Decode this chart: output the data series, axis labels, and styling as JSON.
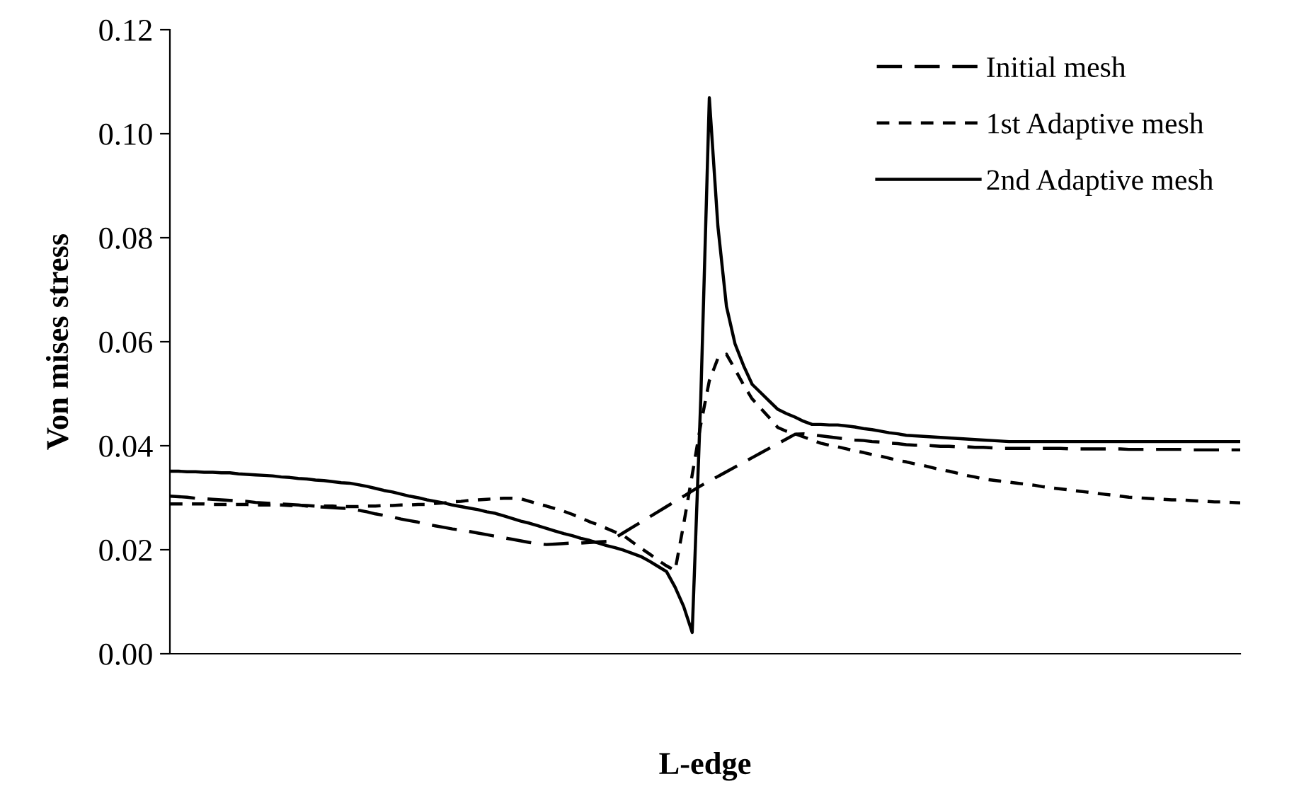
{
  "chart_data": {
    "type": "line",
    "xlabel": "L-edge",
    "ylabel": "Von mises stress",
    "ylim": [
      0,
      0.12
    ],
    "yticks": [
      {
        "value": 0,
        "label": "0.00"
      },
      {
        "value": 0.02,
        "label": "0.02"
      },
      {
        "value": 0.04,
        "label": "0.04"
      },
      {
        "value": 0.06,
        "label": "0.06"
      },
      {
        "value": 0.08,
        "label": "0.08"
      },
      {
        "value": 0.1,
        "label": "0.10"
      },
      {
        "value": 0.12,
        "label": "0.12"
      }
    ],
    "tick_labels": "y",
    "grid": false,
    "legend": "top right",
    "marker": "none",
    "categories": [
      null,
      null,
      null,
      null,
      null,
      null,
      null,
      null,
      null,
      null,
      null,
      null,
      null,
      null,
      null,
      null,
      null,
      null,
      null,
      null,
      null,
      null,
      null,
      null,
      null,
      null,
      null,
      null,
      null,
      null,
      null,
      null,
      null,
      null,
      null,
      null,
      null,
      null,
      null,
      null,
      null,
      null,
      null,
      null,
      null,
      null,
      null,
      null,
      null,
      null,
      null,
      null,
      null,
      null,
      null,
      null,
      null,
      null,
      null,
      null,
      null,
      null,
      null,
      null,
      null,
      null,
      null,
      null,
      null,
      null,
      null,
      null,
      null,
      null,
      null,
      null,
      null,
      null,
      null,
      null,
      null,
      null,
      null,
      null,
      null,
      null,
      null,
      null,
      null,
      null,
      null,
      null,
      null,
      null,
      null,
      null,
      null,
      null,
      null,
      null,
      null,
      null,
      null,
      null,
      null,
      null,
      null,
      null,
      null,
      null,
      null,
      null,
      null,
      null,
      null,
      null,
      null,
      null,
      null,
      null,
      null,
      null,
      null,
      null,
      null,
      null
    ],
    "series": [
      {
        "name": "Initial mesh",
        "color": "#000000",
        "line_style": "dashed",
        "values": [
          0.0303,
          0.0302,
          0.0301,
          0.0299,
          0.0298,
          0.0297,
          0.0296,
          0.0295,
          0.0294,
          0.0293,
          0.0291,
          0.029,
          0.0289,
          0.0288,
          0.0287,
          0.0286,
          0.0284,
          0.0283,
          0.0282,
          0.0281,
          0.028,
          0.0279,
          0.0276,
          0.0273,
          0.0269,
          0.0266,
          0.0263,
          0.0259,
          0.0256,
          0.0253,
          0.0249,
          0.0246,
          0.0243,
          0.024,
          0.0238,
          0.0235,
          0.0232,
          0.0229,
          0.0226,
          0.0223,
          0.022,
          0.0217,
          0.0214,
          0.0211,
          0.021,
          0.0211,
          0.0212,
          0.0213,
          0.0213,
          0.0214,
          0.0215,
          0.0216,
          0.0223,
          0.0233,
          0.0243,
          0.0253,
          0.0263,
          0.0273,
          0.0283,
          0.0293,
          0.0303,
          0.0313,
          0.0323,
          0.0332,
          0.0341,
          0.035,
          0.0359,
          0.0368,
          0.0377,
          0.0386,
          0.0395,
          0.0404,
          0.0413,
          0.0422,
          0.0423,
          0.0421,
          0.0419,
          0.0417,
          0.0415,
          0.0413,
          0.0411,
          0.041,
          0.0408,
          0.0407,
          0.0405,
          0.0404,
          0.0402,
          0.0401,
          0.0401,
          0.04,
          0.0399,
          0.0399,
          0.0398,
          0.0398,
          0.0397,
          0.0397,
          0.0396,
          0.0395,
          0.0395,
          0.0395,
          0.0395,
          0.0395,
          0.0395,
          0.0395,
          0.0395,
          0.0394,
          0.0394,
          0.0394,
          0.0394,
          0.0394,
          0.0394,
          0.0394,
          0.0393,
          0.0393,
          0.0393,
          0.0393,
          0.0393,
          0.0393,
          0.0393,
          0.0392,
          0.0392,
          0.0392,
          0.0392,
          0.0392,
          0.0392,
          0.0392
        ]
      },
      {
        "name": "1st Adaptive mesh",
        "color": "#000000",
        "line_style": "dotted",
        "values": [
          0.0288,
          0.0288,
          0.0288,
          0.0288,
          0.0288,
          0.0287,
          0.0287,
          0.0287,
          0.0287,
          0.0287,
          0.0286,
          0.0286,
          0.0286,
          0.0286,
          0.0285,
          0.0285,
          0.0285,
          0.0284,
          0.0284,
          0.0284,
          0.0283,
          0.0283,
          0.0283,
          0.0284,
          0.0284,
          0.0285,
          0.0285,
          0.0286,
          0.0286,
          0.0287,
          0.0287,
          0.0289,
          0.029,
          0.0292,
          0.0293,
          0.0295,
          0.0296,
          0.0297,
          0.0298,
          0.0299,
          0.0299,
          0.0298,
          0.0293,
          0.0288,
          0.0284,
          0.0279,
          0.0274,
          0.0268,
          0.0261,
          0.0254,
          0.0248,
          0.0241,
          0.0234,
          0.0227,
          0.0215,
          0.0203,
          0.0192,
          0.018,
          0.0169,
          0.016,
          0.0249,
          0.0344,
          0.0441,
          0.0525,
          0.0568,
          0.0576,
          0.0547,
          0.0517,
          0.049,
          0.0472,
          0.0454,
          0.0435,
          0.0428,
          0.0423,
          0.0417,
          0.0411,
          0.0405,
          0.0401,
          0.0398,
          0.0394,
          0.039,
          0.0387,
          0.0383,
          0.038,
          0.0376,
          0.0372,
          0.0369,
          0.0365,
          0.0362,
          0.0358,
          0.0354,
          0.0351,
          0.0347,
          0.0343,
          0.034,
          0.0336,
          0.0334,
          0.0332,
          0.033,
          0.0328,
          0.0326,
          0.0324,
          0.0321,
          0.0319,
          0.0317,
          0.0315,
          0.0313,
          0.0311,
          0.0309,
          0.0307,
          0.0305,
          0.0303,
          0.0301,
          0.03,
          0.0299,
          0.0298,
          0.0297,
          0.0296,
          0.0296,
          0.0295,
          0.0294,
          0.0293,
          0.0292,
          0.0292,
          0.0291,
          0.029
        ]
      },
      {
        "name": "2nd Adaptive mesh",
        "color": "#000000",
        "line_style": "solid",
        "values": [
          0.0351,
          0.0351,
          0.035,
          0.035,
          0.0349,
          0.0349,
          0.0348,
          0.0348,
          0.0346,
          0.0345,
          0.0344,
          0.0343,
          0.0342,
          0.034,
          0.0339,
          0.0337,
          0.0336,
          0.0334,
          0.0333,
          0.0331,
          0.0329,
          0.0328,
          0.0325,
          0.0322,
          0.0318,
          0.0314,
          0.0311,
          0.0307,
          0.0303,
          0.03,
          0.0296,
          0.0293,
          0.029,
          0.0286,
          0.0283,
          0.028,
          0.0277,
          0.0273,
          0.027,
          0.0265,
          0.026,
          0.0255,
          0.0251,
          0.0246,
          0.0241,
          0.0236,
          0.0231,
          0.0227,
          0.0222,
          0.0218,
          0.0213,
          0.0208,
          0.0204,
          0.0199,
          0.0193,
          0.0187,
          0.0178,
          0.0168,
          0.0158,
          0.0128,
          0.0091,
          0.0041,
          0.049,
          0.1069,
          0.0822,
          0.0668,
          0.0596,
          0.0554,
          0.0518,
          0.0502,
          0.0486,
          0.047,
          0.0462,
          0.0455,
          0.0447,
          0.0441,
          0.0441,
          0.044,
          0.044,
          0.0438,
          0.0436,
          0.0433,
          0.0431,
          0.0428,
          0.0425,
          0.0423,
          0.042,
          0.0419,
          0.0418,
          0.0417,
          0.0416,
          0.0415,
          0.0414,
          0.0413,
          0.0412,
          0.0411,
          0.041,
          0.0409,
          0.0408,
          0.0408,
          0.0408,
          0.0408,
          0.0408,
          0.0408,
          0.0408,
          0.0408,
          0.0408,
          0.0408,
          0.0408,
          0.0408,
          0.0408,
          0.0408,
          0.0408,
          0.0408,
          0.0408,
          0.0408,
          0.0408,
          0.0408,
          0.0408,
          0.0408,
          0.0408,
          0.0408,
          0.0408,
          0.0408,
          0.0408,
          0.0408
        ]
      }
    ]
  }
}
